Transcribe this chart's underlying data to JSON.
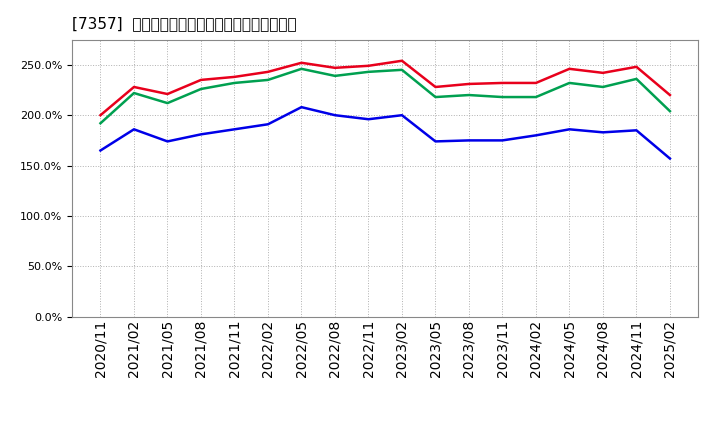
{
  "title": "[7357]  流動比率、当座比率、現頓金比率の推移",
  "x_labels": [
    "2020/11",
    "2021/02",
    "2021/05",
    "2021/08",
    "2021/11",
    "2022/02",
    "2022/05",
    "2022/08",
    "2022/11",
    "2023/02",
    "2023/05",
    "2023/08",
    "2023/11",
    "2024/02",
    "2024/05",
    "2024/08",
    "2024/11",
    "2025/02"
  ],
  "ryudo": [
    200.0,
    228.0,
    221.0,
    235.0,
    238.0,
    243.0,
    252.0,
    247.0,
    249.0,
    254.0,
    228.0,
    231.0,
    232.0,
    232.0,
    246.0,
    242.0,
    248.0,
    220.0
  ],
  "toza": [
    192.0,
    222.0,
    212.0,
    226.0,
    232.0,
    235.0,
    246.0,
    239.0,
    243.0,
    245.0,
    218.0,
    220.0,
    218.0,
    218.0,
    232.0,
    228.0,
    236.0,
    204.0
  ],
  "genyo": [
    165.0,
    186.0,
    174.0,
    181.0,
    186.0,
    191.0,
    208.0,
    200.0,
    196.0,
    200.0,
    174.0,
    175.0,
    175.0,
    180.0,
    186.0,
    183.0,
    185.0,
    157.0
  ],
  "ryudo_color": "#e8001c",
  "toza_color": "#00a050",
  "genyo_color": "#0000e8",
  "legend_labels": [
    "流動比率",
    "当座比率",
    "現頓金比率"
  ],
  "ylim": [
    0.0,
    275.0
  ],
  "yticks": [
    0.0,
    50.0,
    100.0,
    150.0,
    200.0,
    250.0
  ],
  "bg_color": "#ffffff",
  "grid_color": "#b0b0b0",
  "linewidth": 1.8
}
